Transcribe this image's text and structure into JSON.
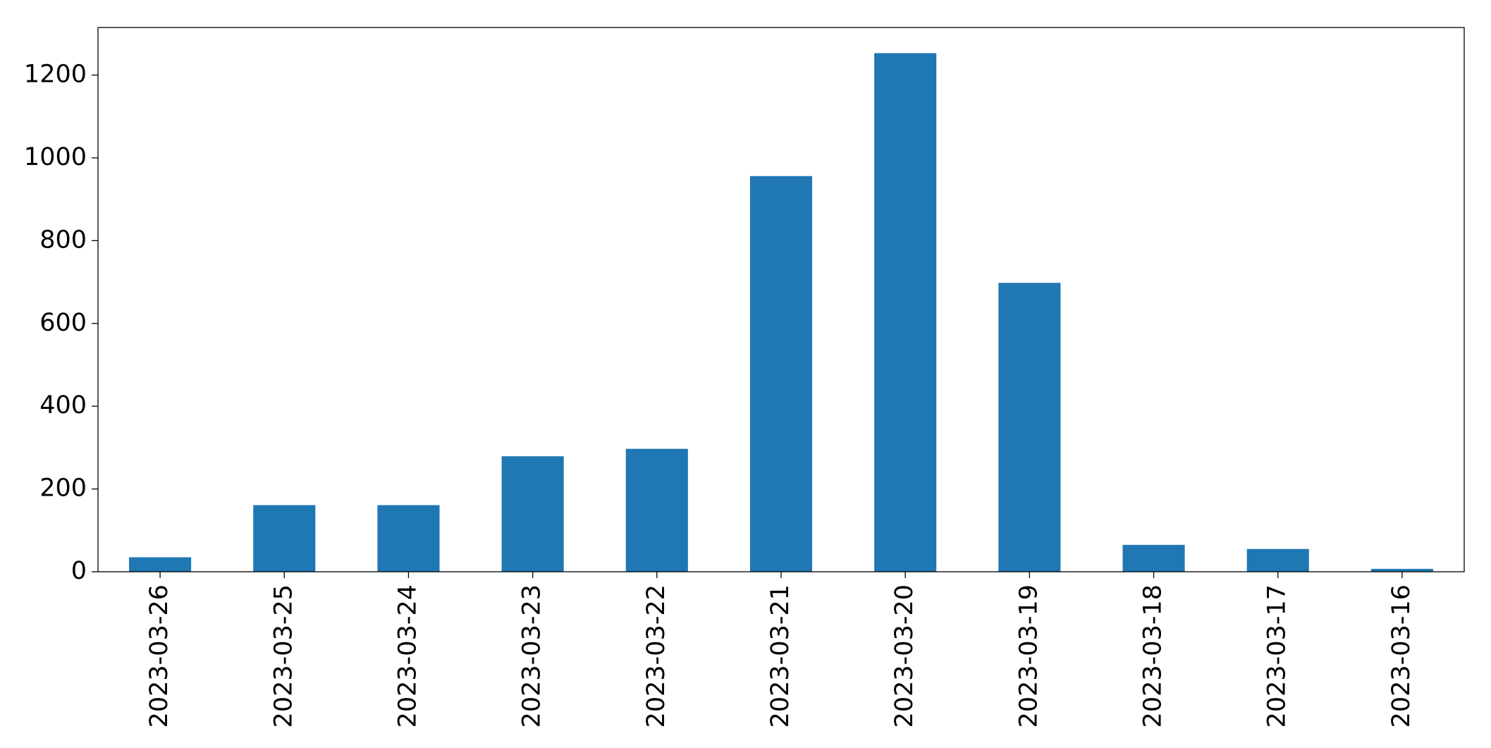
{
  "chart_data": {
    "type": "bar",
    "categories": [
      "2023-03-26",
      "2023-03-25",
      "2023-03-24",
      "2023-03-23",
      "2023-03-22",
      "2023-03-21",
      "2023-03-20",
      "2023-03-19",
      "2023-03-18",
      "2023-03-17",
      "2023-03-16"
    ],
    "values": [
      35,
      161,
      161,
      279,
      297,
      956,
      1253,
      698,
      65,
      55,
      7
    ],
    "color": "#1f77b4",
    "ylim": [
      0,
      1315
    ],
    "yticks": [
      0,
      200,
      400,
      600,
      800,
      1000,
      1200
    ],
    "grid": false
  }
}
